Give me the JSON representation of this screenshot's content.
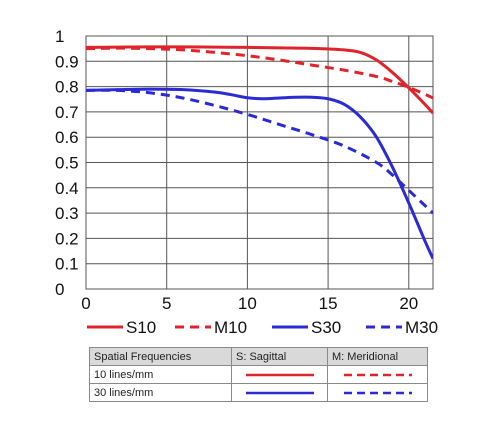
{
  "chart_data": {
    "type": "line",
    "xlim": [
      0,
      21.5
    ],
    "ylim": [
      0,
      1
    ],
    "x_ticks": [
      0,
      5,
      10,
      15,
      20
    ],
    "y_ticks": [
      0,
      0.1,
      0.2,
      0.3,
      0.4,
      0.5,
      0.6,
      0.7,
      0.8,
      0.9,
      1
    ],
    "x_tick_labels": [
      "0",
      "5",
      "10",
      "15",
      "20"
    ],
    "y_tick_labels": [
      "0",
      "0.1",
      "0.2",
      "0.3",
      "0.4",
      "0.5",
      "0.6",
      "0.7",
      "0.8",
      "0.9",
      "1"
    ],
    "grid": true,
    "legend_position": "bottom",
    "series": [
      {
        "name": "S10",
        "color": "#e0242b",
        "dash": "solid",
        "x": [
          0,
          2,
          4,
          6,
          8,
          10,
          12,
          14,
          16,
          17,
          18,
          19,
          20,
          21,
          21.5
        ],
        "y": [
          0.955,
          0.956,
          0.957,
          0.957,
          0.956,
          0.955,
          0.953,
          0.951,
          0.945,
          0.935,
          0.905,
          0.855,
          0.795,
          0.73,
          0.695
        ]
      },
      {
        "name": "M10",
        "color": "#e0242b",
        "dash": "dashed",
        "x": [
          0,
          2,
          4,
          6,
          8,
          10,
          12,
          14,
          16,
          18,
          19,
          20,
          21,
          21.5
        ],
        "y": [
          0.95,
          0.952,
          0.95,
          0.945,
          0.935,
          0.922,
          0.905,
          0.885,
          0.865,
          0.84,
          0.82,
          0.797,
          0.77,
          0.755
        ]
      },
      {
        "name": "S30",
        "color": "#2b2bd6",
        "dash": "solid",
        "x": [
          0,
          2,
          4,
          6,
          8,
          9,
          10,
          11,
          12,
          13,
          14,
          15,
          16,
          17,
          18,
          19,
          20,
          21,
          21.5
        ],
        "y": [
          0.785,
          0.788,
          0.79,
          0.788,
          0.778,
          0.768,
          0.756,
          0.752,
          0.755,
          0.758,
          0.758,
          0.752,
          0.73,
          0.68,
          0.6,
          0.48,
          0.34,
          0.19,
          0.12
        ]
      },
      {
        "name": "M30",
        "color": "#2b2bd6",
        "dash": "dashed",
        "x": [
          0,
          2,
          4,
          6,
          8,
          10,
          12,
          14,
          16,
          18,
          19,
          20,
          21,
          21.5
        ],
        "y": [
          0.785,
          0.785,
          0.775,
          0.755,
          0.725,
          0.69,
          0.65,
          0.61,
          0.565,
          0.5,
          0.45,
          0.39,
          0.33,
          0.3
        ]
      }
    ]
  },
  "table": {
    "headers": [
      "Spatial Frequencies",
      "S: Sagittal",
      "M: Meridional"
    ],
    "rows": [
      {
        "label": "10 lines/mm",
        "color": "#e0242b"
      },
      {
        "label": "30 lines/mm",
        "color": "#2b2bd6"
      }
    ]
  }
}
